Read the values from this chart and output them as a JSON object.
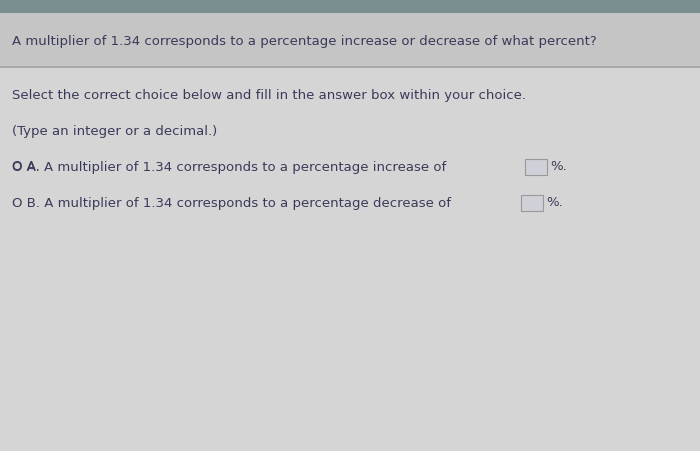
{
  "header_bg": "#c5c5c5",
  "body_bg": "#d5d5d5",
  "text_color": "#3a3a5a",
  "title_text": "A multiplier of 1.34 corresponds to a percentage increase or decrease of what percent?",
  "instruction1": "Select the correct choice below and fill in the answer box within your choice.",
  "instruction2": "(Type an integer or a decimal.)",
  "option_a_circle": "O A.",
  "option_a_text": " A multiplier of 1.34 corresponds to a percentage increase of",
  "option_a_suffix": "%.",
  "option_b_circle": "O B.",
  "option_b_text": " A multiplier of 1.34 corresponds to a percentage decrease of",
  "option_b_suffix": "%.",
  "title_fontsize": 9.5,
  "body_fontsize": 9.5,
  "divider_color": "#aaaaaa",
  "box_edge_color": "#999999",
  "box_face_color": "#d0d0d8",
  "header_top_color": "#7a9090"
}
